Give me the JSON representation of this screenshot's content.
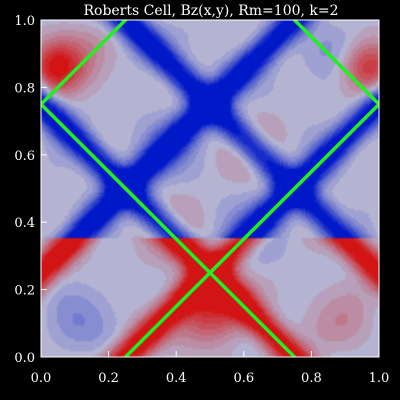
{
  "chart_data": {
    "type": "heatmap",
    "title": "Roberts Cell, Bz(x,y), Rm=100, k=2",
    "xlabel": "",
    "ylabel": "",
    "xlim": [
      0.0,
      1.0
    ],
    "ylim": [
      0.0,
      1.0
    ],
    "x_ticks": [
      0.0,
      0.2,
      0.4,
      0.6,
      0.8,
      1.0
    ],
    "y_ticks": [
      0.0,
      0.2,
      0.4,
      0.6,
      0.8,
      1.0
    ],
    "x_tick_labels": [
      "0.0",
      "0.2",
      "0.4",
      "0.6",
      "0.8",
      "1.0"
    ],
    "y_tick_labels": [
      "0.0",
      "0.2",
      "0.4",
      "0.6",
      "0.8",
      "1.0"
    ],
    "colormap": {
      "negative": "#0019c8",
      "neutral": "#b4b4d2",
      "positive": "#d21414"
    },
    "overlay_lines": {
      "color": "#22ee22",
      "segments": [
        [
          [
            0.0,
            0.75
          ],
          [
            0.25,
            1.0
          ]
        ],
        [
          [
            0.75,
            1.0
          ],
          [
            1.0,
            0.75
          ]
        ],
        [
          [
            0.0,
            0.75
          ],
          [
            0.75,
            0.0
          ]
        ],
        [
          [
            1.0,
            0.75
          ],
          [
            0.25,
            0.0
          ]
        ]
      ]
    },
    "grid": false,
    "background": "#000000"
  }
}
